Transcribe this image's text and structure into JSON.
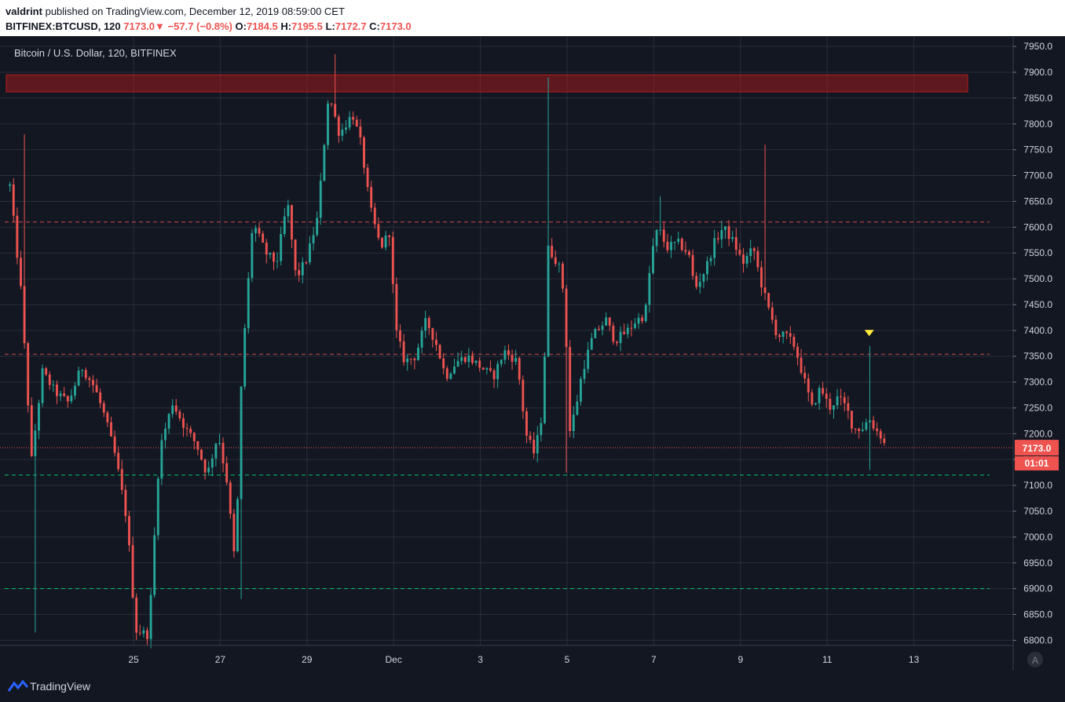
{
  "header": {
    "author": "valdrint",
    "published_text": "published on TradingView.com, December 12, 2019 08:59:00 CET",
    "symbol": "BITFINEX:BTCUSD, 120",
    "last": "7173.0",
    "change": "−57.7 (−0.8%)",
    "o_label": "O:",
    "o_value": "7184.5",
    "h_label": "H:",
    "h_value": "7195.5",
    "l_label": "L:",
    "l_value": "7172.7",
    "c_label": "C:",
    "c_value": "7173.0"
  },
  "chart_data": {
    "type": "candlestick",
    "title": "Bitcoin / U.S. Dollar, 120, BITFINEX",
    "ylim": [
      6790,
      7970
    ],
    "y_ticks": [
      "7950.0",
      "7900.0",
      "7850.0",
      "7800.0",
      "7750.0",
      "7700.0",
      "7650.0",
      "7600.0",
      "7550.0",
      "7500.0",
      "7450.0",
      "7400.0",
      "7350.0",
      "7300.0",
      "7250.0",
      "7200.0",
      "7150.0",
      "7100.0",
      "7050.0",
      "7000.0",
      "6950.0",
      "6900.0",
      "6850.0",
      "6800.0"
    ],
    "x_ticks": [
      {
        "label": "25",
        "day": 25
      },
      {
        "label": "27",
        "day": 27
      },
      {
        "label": "29",
        "day": 29
      },
      {
        "label": "Dec",
        "day": 31
      },
      {
        "label": "3",
        "day": 33
      },
      {
        "label": "5",
        "day": 35
      },
      {
        "label": "7",
        "day": 37
      },
      {
        "label": "9",
        "day": 39
      },
      {
        "label": "11",
        "day": 41
      },
      {
        "label": "13",
        "day": 43
      }
    ],
    "x_start_day": 22.15,
    "x_end_day": 43.05,
    "last_price": "7173.0",
    "countdown": "01:01",
    "levels": [
      {
        "price": 7610,
        "color": "#ef5350",
        "style": "dashed"
      },
      {
        "price": 7354,
        "color": "#ef5350",
        "style": "dashed"
      },
      {
        "price": 7120,
        "color": "#00e676",
        "style": "dashed"
      },
      {
        "price": 6900,
        "color": "#00e676",
        "style": "dashed"
      }
    ],
    "resistance_zone": {
      "low": 7862,
      "high": 7895
    },
    "marker": {
      "day": 41.97,
      "price": 7395
    },
    "path": [
      [
        22.15,
        7680
      ],
      [
        22.4,
        7480
      ],
      [
        22.65,
        7150
      ],
      [
        22.9,
        7320
      ],
      [
        23.2,
        7280
      ],
      [
        23.5,
        7260
      ],
      [
        23.8,
        7330
      ],
      [
        24.1,
        7290
      ],
      [
        24.35,
        7230
      ],
      [
        24.6,
        7150
      ],
      [
        24.85,
        7030
      ],
      [
        25.05,
        6820
      ],
      [
        25.35,
        6810
      ],
      [
        25.6,
        7170
      ],
      [
        25.9,
        7260
      ],
      [
        26.2,
        7210
      ],
      [
        26.45,
        7180
      ],
      [
        26.7,
        7120
      ],
      [
        26.95,
        7200
      ],
      [
        27.15,
        7110
      ],
      [
        27.35,
        6940
      ],
      [
        27.5,
        7330
      ],
      [
        27.75,
        7610
      ],
      [
        28.05,
        7550
      ],
      [
        28.3,
        7530
      ],
      [
        28.55,
        7650
      ],
      [
        28.75,
        7500
      ],
      [
        29.0,
        7540
      ],
      [
        29.25,
        7620
      ],
      [
        29.5,
        7860
      ],
      [
        29.75,
        7780
      ],
      [
        30.05,
        7820
      ],
      [
        30.25,
        7760
      ],
      [
        30.45,
        7640
      ],
      [
        30.7,
        7560
      ],
      [
        30.9,
        7590
      ],
      [
        31.05,
        7400
      ],
      [
        31.25,
        7340
      ],
      [
        31.5,
        7350
      ],
      [
        31.75,
        7420
      ],
      [
        32.0,
        7370
      ],
      [
        32.2,
        7310
      ],
      [
        32.45,
        7340
      ],
      [
        32.7,
        7350
      ],
      [
        33.0,
        7330
      ],
      [
        33.3,
        7310
      ],
      [
        33.55,
        7360
      ],
      [
        33.85,
        7340
      ],
      [
        34.05,
        7200
      ],
      [
        34.25,
        7160
      ],
      [
        34.45,
        7250
      ],
      [
        34.55,
        7560
      ],
      [
        34.8,
        7530
      ],
      [
        34.95,
        7460
      ],
      [
        35.05,
        7200
      ],
      [
        35.2,
        7250
      ],
      [
        35.35,
        7320
      ],
      [
        35.6,
        7390
      ],
      [
        35.9,
        7420
      ],
      [
        36.1,
        7380
      ],
      [
        36.4,
        7400
      ],
      [
        36.6,
        7420
      ],
      [
        36.8,
        7430
      ],
      [
        36.95,
        7550
      ],
      [
        37.1,
        7600
      ],
      [
        37.3,
        7560
      ],
      [
        37.55,
        7570
      ],
      [
        37.8,
        7550
      ],
      [
        37.95,
        7480
      ],
      [
        38.2,
        7520
      ],
      [
        38.4,
        7570
      ],
      [
        38.6,
        7600
      ],
      [
        38.85,
        7570
      ],
      [
        39.05,
        7530
      ],
      [
        39.3,
        7560
      ],
      [
        39.45,
        7500
      ],
      [
        39.65,
        7440
      ],
      [
        39.85,
        7390
      ],
      [
        40.05,
        7390
      ],
      [
        40.25,
        7370
      ],
      [
        40.45,
        7310
      ],
      [
        40.65,
        7250
      ],
      [
        40.85,
        7290
      ],
      [
        41.05,
        7250
      ],
      [
        41.25,
        7270
      ],
      [
        41.45,
        7250
      ],
      [
        41.6,
        7210
      ],
      [
        41.8,
        7210
      ],
      [
        41.97,
        7230
      ],
      [
        42.1,
        7210
      ],
      [
        42.25,
        7195
      ],
      [
        42.35,
        7173
      ]
    ],
    "spikes": [
      {
        "day": 22.45,
        "high": 7780
      },
      {
        "day": 29.65,
        "high": 7935
      },
      {
        "day": 34.55,
        "high": 7890
      },
      {
        "day": 37.15,
        "high": 7660
      },
      {
        "day": 39.55,
        "high": 7760
      },
      {
        "day": 41.97,
        "high": 7370,
        "low": 7130
      },
      {
        "day": 34.95,
        "low": 7125
      },
      {
        "day": 22.75,
        "low": 6815
      },
      {
        "day": 27.45,
        "low": 6880
      }
    ]
  },
  "footer": {
    "brand": "TradingView",
    "auto_label": "A"
  }
}
